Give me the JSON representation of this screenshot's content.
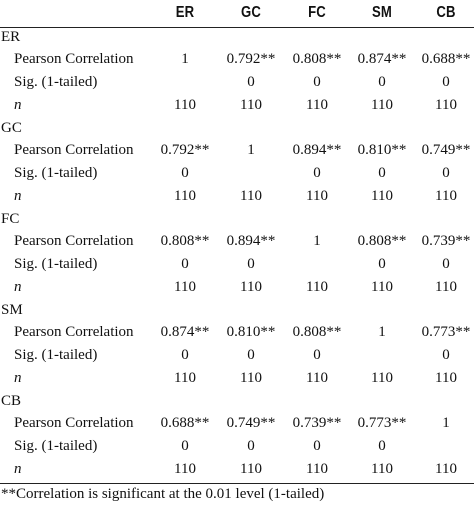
{
  "columns": [
    "ER",
    "GC",
    "FC",
    "SM",
    "CB"
  ],
  "groups": [
    {
      "name": "ER",
      "rows": [
        {
          "label": "Pearson Correlation",
          "values": [
            "1",
            "0.792**",
            "0.808**",
            "0.874**",
            "0.688**"
          ]
        },
        {
          "label": "Sig. (1-tailed)",
          "values": [
            "",
            "0",
            "0",
            "0",
            "0"
          ]
        },
        {
          "label": "n",
          "values": [
            "110",
            "110",
            "110",
            "110",
            "110"
          ]
        }
      ]
    },
    {
      "name": "GC",
      "rows": [
        {
          "label": "Pearson Correlation",
          "values": [
            "0.792**",
            "1",
            "0.894**",
            "0.810**",
            "0.749**"
          ]
        },
        {
          "label": "Sig. (1-tailed)",
          "values": [
            "0",
            "",
            "0",
            "0",
            "0"
          ]
        },
        {
          "label": "n",
          "values": [
            "110",
            "110",
            "110",
            "110",
            "110"
          ]
        }
      ]
    },
    {
      "name": "FC",
      "rows": [
        {
          "label": "Pearson Correlation",
          "values": [
            "0.808**",
            "0.894**",
            "1",
            "0.808**",
            "0.739**"
          ]
        },
        {
          "label": "Sig. (1-tailed)",
          "values": [
            "0",
            "0",
            "",
            "0",
            "0"
          ]
        },
        {
          "label": "n",
          "values": [
            "110",
            "110",
            "110",
            "110",
            "110"
          ]
        }
      ]
    },
    {
      "name": "SM",
      "rows": [
        {
          "label": "Pearson Correlation",
          "values": [
            "0.874**",
            "0.810**",
            "0.808**",
            "1",
            "0.773**"
          ]
        },
        {
          "label": "Sig. (1-tailed)",
          "values": [
            "0",
            "0",
            "0",
            "",
            "0"
          ]
        },
        {
          "label": "n",
          "values": [
            "110",
            "110",
            "110",
            "110",
            "110"
          ]
        }
      ]
    },
    {
      "name": "CB",
      "rows": [
        {
          "label": "Pearson Correlation",
          "values": [
            "0.688**",
            "0.749**",
            "0.739**",
            "0.773**",
            "1"
          ]
        },
        {
          "label": "Sig. (1-tailed)",
          "values": [
            "0",
            "0",
            "0",
            "0",
            ""
          ]
        },
        {
          "label": "n",
          "values": [
            "110",
            "110",
            "110",
            "110",
            "110"
          ]
        }
      ]
    }
  ],
  "footnote": "**Correlation is significant at the 0.01 level (1-tailed)"
}
